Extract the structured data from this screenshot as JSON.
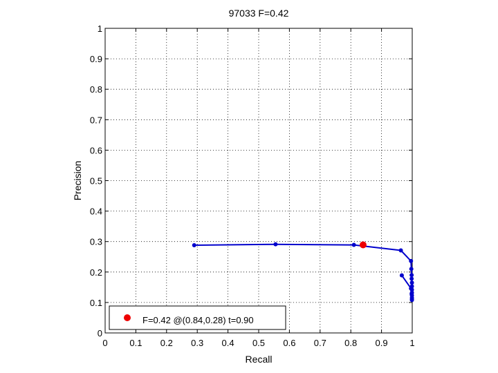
{
  "chart_data": {
    "type": "line",
    "title": "97033 F=0.42",
    "xlabel": "Recall",
    "ylabel": "Precision",
    "xlim": [
      0,
      1
    ],
    "ylim": [
      0,
      1
    ],
    "grid": true,
    "xticks": [
      0,
      0.1,
      0.2,
      0.3,
      0.4,
      0.5,
      0.6,
      0.7,
      0.8,
      0.9,
      1
    ],
    "yticks": [
      0,
      0.1,
      0.2,
      0.3,
      0.4,
      0.5,
      0.6,
      0.7,
      0.8,
      0.9,
      1
    ],
    "xtick_labels": [
      "0",
      "0.1",
      "0.2",
      "0.3",
      "0.4",
      "0.5",
      "0.6",
      "0.7",
      "0.8",
      "0.9",
      "1"
    ],
    "ytick_labels": [
      "0",
      "0.1",
      "0.2",
      "0.3",
      "0.4",
      "0.5",
      "0.6",
      "0.7",
      "0.8",
      "0.9",
      "1"
    ],
    "series": [
      {
        "color": "#0000cc",
        "x": [
          0.29,
          0.555,
          0.81,
          0.963,
          0.996,
          0.997,
          0.998,
          0.998,
          0.999,
          0.999,
          0.999,
          0.999,
          0.999,
          0.999,
          0.999,
          0.999,
          0.998,
          0.996,
          0.966
        ],
        "y": [
          0.288,
          0.291,
          0.289,
          0.271,
          0.236,
          0.21,
          0.19,
          0.178,
          0.165,
          0.153,
          0.142,
          0.132,
          0.123,
          0.115,
          0.108,
          0.11,
          0.128,
          0.146,
          0.189
        ]
      }
    ],
    "best_point": {
      "x": 0.84,
      "y": 0.28,
      "color": "#ee0000"
    },
    "legend": {
      "location": "bottom-left",
      "label": "F=0.42 @(0.84,0.28) t=0.90"
    }
  }
}
